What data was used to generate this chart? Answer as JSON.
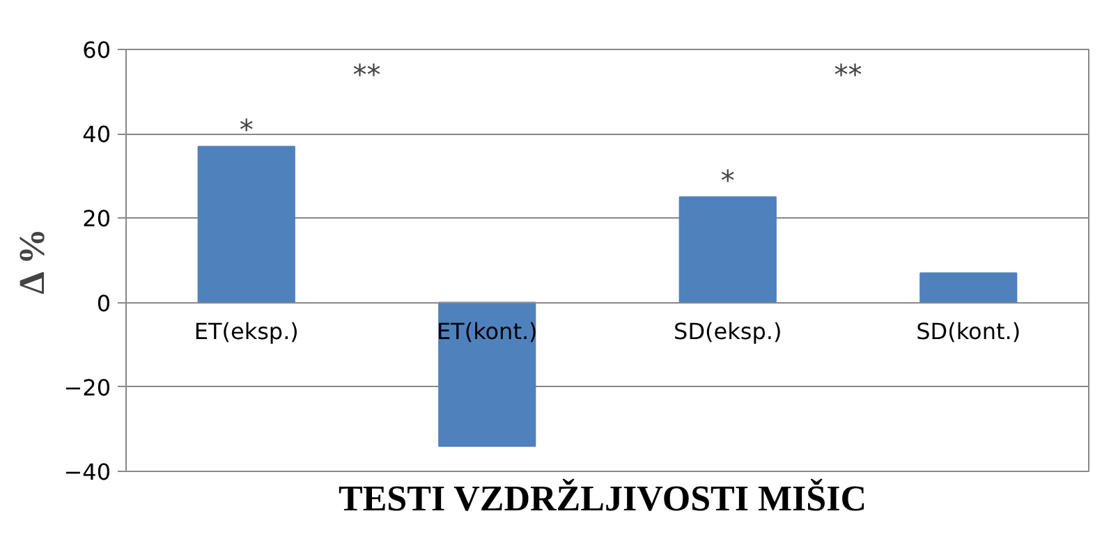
{
  "chart_data": {
    "type": "bar",
    "xlabel": "TESTI VZDRŽLJIVOSTI  MIŠIC",
    "ylabel": "Δ %",
    "categories": [
      "ET(eksp.)",
      "ET(kont.)",
      "SD(eksp.)",
      "SD(kont.)"
    ],
    "values": [
      37,
      -34,
      25,
      7
    ],
    "color": "#4f81bd",
    "ylim": [
      -40,
      60
    ],
    "yticks": [
      -40,
      -20,
      0,
      20,
      40,
      60
    ],
    "grid": "y",
    "annotations": [
      "*",
      "*",
      "**",
      "**"
    ]
  }
}
